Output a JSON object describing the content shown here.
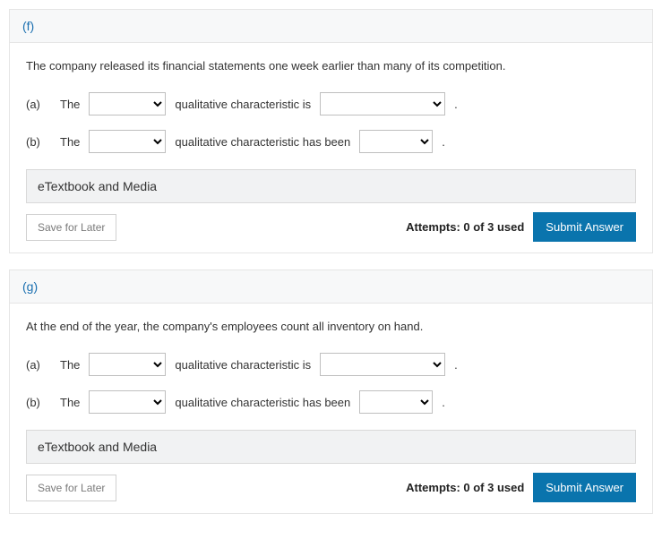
{
  "questions": [
    {
      "label": "(f)",
      "prompt": "The company released its financial statements one week earlier than many of its competition.",
      "parts": [
        {
          "part": "(a)",
          "pre": "The",
          "mid": "qualitative characteristic is",
          "sel2_variant": "w2"
        },
        {
          "part": "(b)",
          "pre": "The",
          "mid": "qualitative characteristic has been",
          "sel2_variant": "w3"
        }
      ],
      "etextbook": "eTextbook and Media",
      "save": "Save for Later",
      "attempts": "Attempts: 0 of 3 used",
      "submit": "Submit Answer"
    },
    {
      "label": "(g)",
      "prompt": "At the end of the year, the company's employees count all inventory on hand.",
      "parts": [
        {
          "part": "(a)",
          "pre": "The",
          "mid": "qualitative characteristic is",
          "sel2_variant": "w2"
        },
        {
          "part": "(b)",
          "pre": "The",
          "mid": "qualitative characteristic has been",
          "sel2_variant": "w3"
        }
      ],
      "etextbook": "eTextbook and Media",
      "save": "Save for Later",
      "attempts": "Attempts: 0 of 3 used",
      "submit": "Submit Answer"
    }
  ]
}
